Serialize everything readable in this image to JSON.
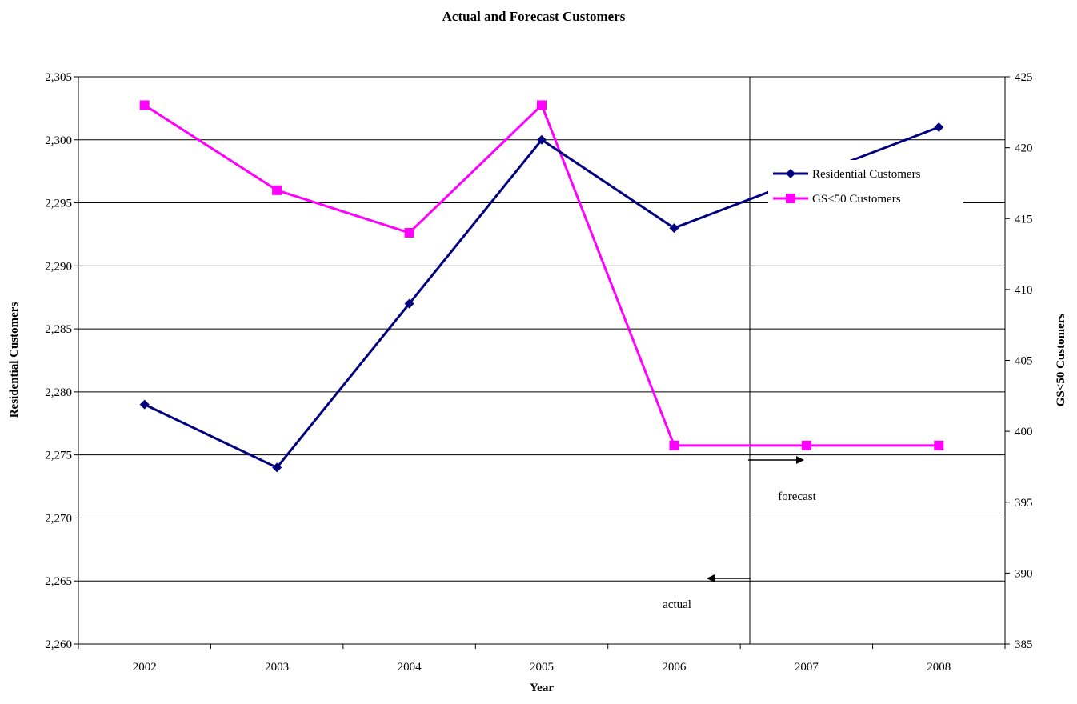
{
  "chart_data": {
    "type": "line",
    "title": "Actual and Forecast Customers",
    "xlabel": "Year",
    "ylabel_left": "Residential Customers",
    "ylabel_right": "GS<50 Customers",
    "categories": [
      "2002",
      "2003",
      "2004",
      "2005",
      "2006",
      "2007",
      "2008"
    ],
    "y_left": {
      "min": 2260,
      "max": 2305,
      "step": 5,
      "tick_labels": [
        "2,260",
        "2,265",
        "2,270",
        "2,275",
        "2,280",
        "2,285",
        "2,290",
        "2,295",
        "2,300",
        "2,305"
      ]
    },
    "y_right": {
      "min": 385,
      "max": 425,
      "step": 5,
      "tick_labels": [
        "385",
        "390",
        "395",
        "400",
        "405",
        "410",
        "415",
        "420",
        "425"
      ]
    },
    "series": [
      {
        "name": "Residential Customers",
        "axis": "left",
        "color": "#000080",
        "marker": "diamond",
        "values": [
          2279,
          2274,
          2287,
          2300,
          2293,
          2297,
          2301
        ]
      },
      {
        "name": "GS<50 Customers",
        "axis": "right",
        "color": "#ff00ff",
        "marker": "square",
        "values": [
          423,
          417,
          414,
          423,
          399,
          399,
          399
        ]
      }
    ],
    "grid": true,
    "legend_position": "top-right",
    "annotations": {
      "forecast_label": "forecast",
      "actual_label": "actual"
    }
  }
}
